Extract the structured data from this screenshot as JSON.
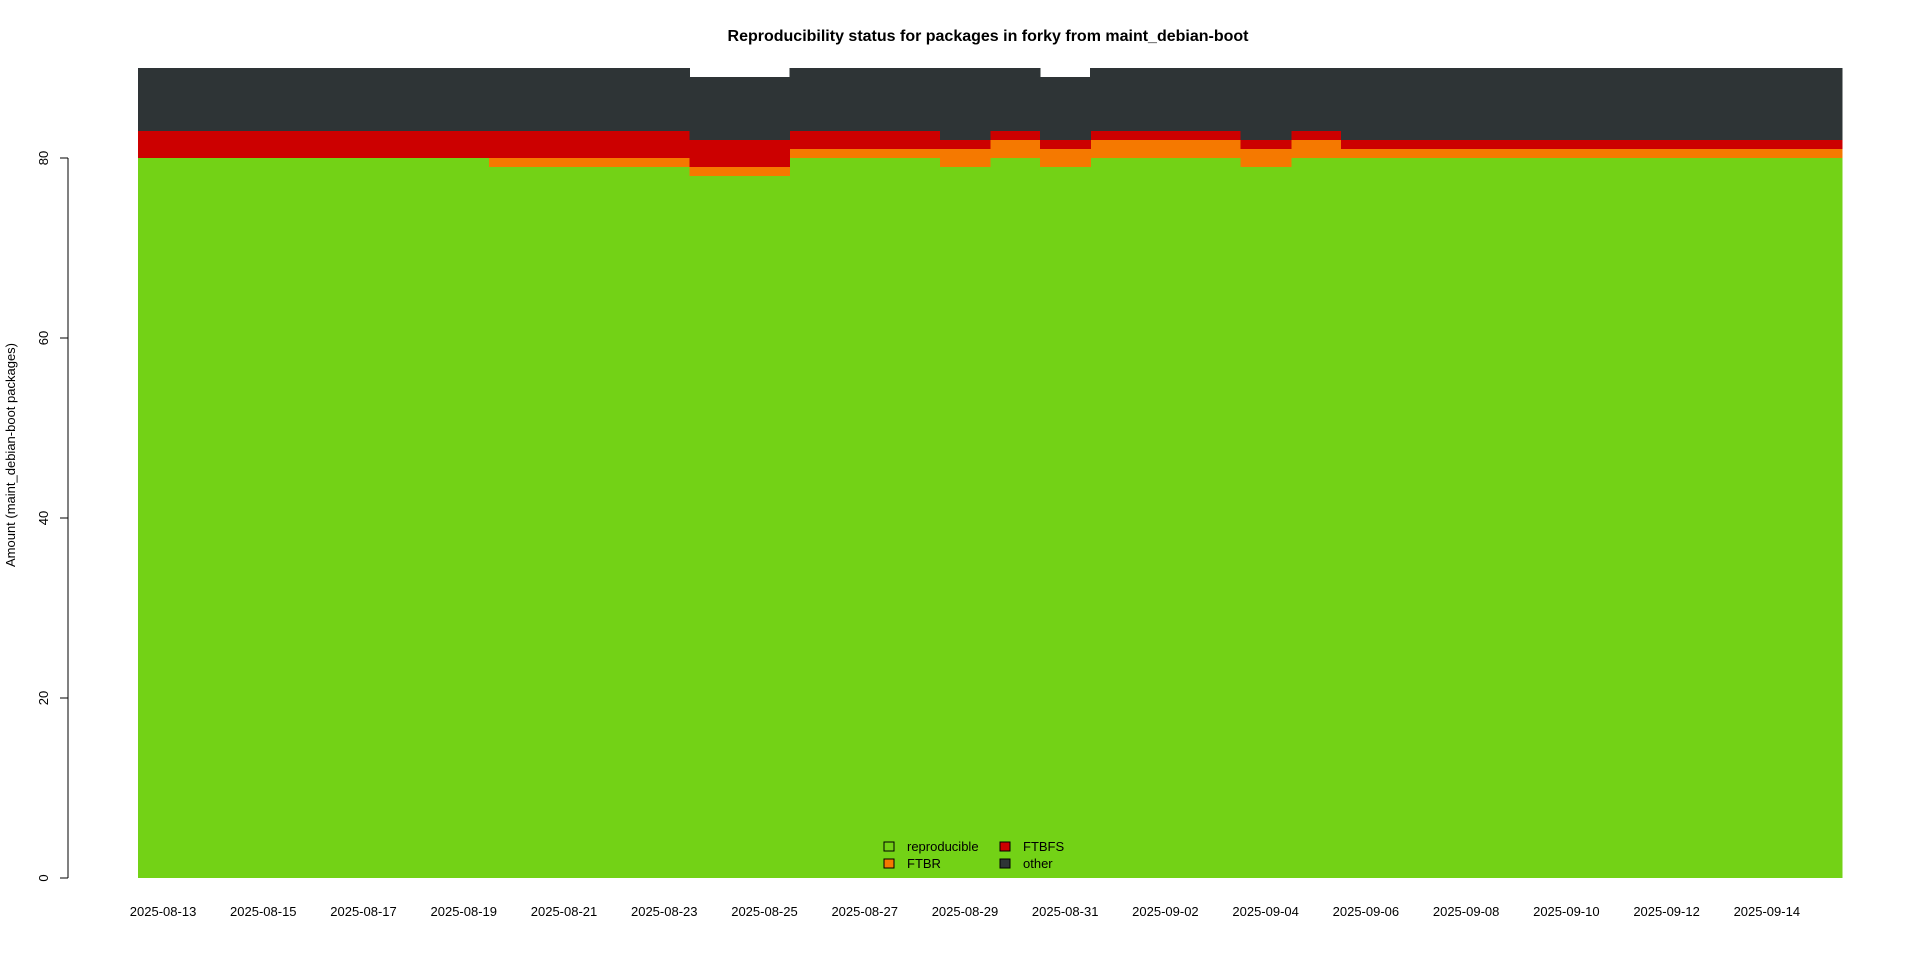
{
  "chart_data": {
    "type": "area",
    "title": "Reproducibility status for packages in forky from maint_debian-boot",
    "xlabel": "",
    "ylabel": "Amount (maint_debian-boot packages)",
    "ylim": [
      0,
      90
    ],
    "y_ticks": [
      0,
      20,
      40,
      60,
      80
    ],
    "x": [
      "2025-08-13",
      "2025-08-14",
      "2025-08-15",
      "2025-08-16",
      "2025-08-17",
      "2025-08-18",
      "2025-08-19",
      "2025-08-20",
      "2025-08-21",
      "2025-08-22",
      "2025-08-23",
      "2025-08-24",
      "2025-08-25",
      "2025-08-26",
      "2025-08-27",
      "2025-08-28",
      "2025-08-29",
      "2025-08-30",
      "2025-08-31",
      "2025-09-01",
      "2025-09-02",
      "2025-09-03",
      "2025-09-04",
      "2025-09-05",
      "2025-09-06",
      "2025-09-07",
      "2025-09-08",
      "2025-09-09",
      "2025-09-10",
      "2025-09-11",
      "2025-09-12",
      "2025-09-13",
      "2025-09-14",
      "2025-09-15"
    ],
    "x_tick_labels": [
      "2025-08-13",
      "2025-08-15",
      "2025-08-17",
      "2025-08-19",
      "2025-08-21",
      "2025-08-23",
      "2025-08-25",
      "2025-08-27",
      "2025-08-29",
      "2025-08-31",
      "2025-09-02",
      "2025-09-04",
      "2025-09-06",
      "2025-09-08",
      "2025-09-10",
      "2025-09-12",
      "2025-09-14"
    ],
    "series": [
      {
        "name": "reproducible",
        "color": "#73d216",
        "values": [
          80,
          80,
          80,
          80,
          80,
          80,
          80,
          79,
          79,
          79,
          79,
          78,
          78,
          80,
          80,
          80,
          79,
          80,
          79,
          80,
          80,
          80,
          79,
          80,
          80,
          80,
          80,
          80,
          80,
          80,
          80,
          80,
          80,
          80
        ]
      },
      {
        "name": "FTBR",
        "color": "#f57900",
        "values": [
          0,
          0,
          0,
          0,
          0,
          0,
          0,
          1,
          1,
          1,
          1,
          1,
          1,
          1,
          1,
          1,
          2,
          2,
          2,
          2,
          2,
          2,
          2,
          2,
          1,
          1,
          1,
          1,
          1,
          1,
          1,
          1,
          1,
          1
        ]
      },
      {
        "name": "FTBFS",
        "color": "#cc0000",
        "values": [
          3,
          3,
          3,
          3,
          3,
          3,
          3,
          3,
          3,
          3,
          3,
          3,
          3,
          2,
          2,
          2,
          1,
          1,
          1,
          1,
          1,
          1,
          1,
          1,
          1,
          1,
          1,
          1,
          1,
          1,
          1,
          1,
          1,
          1
        ]
      },
      {
        "name": "other",
        "color": "#2e3436",
        "values": [
          7,
          7,
          7,
          7,
          7,
          7,
          7,
          7,
          7,
          7,
          7,
          7,
          7,
          7,
          7,
          7,
          8,
          7,
          7,
          7,
          7,
          7,
          8,
          7,
          8,
          8,
          8,
          8,
          8,
          8,
          8,
          8,
          8,
          8
        ]
      }
    ],
    "legend": {
      "placement": "bottom-center",
      "columns": 2
    },
    "grid": false
  }
}
